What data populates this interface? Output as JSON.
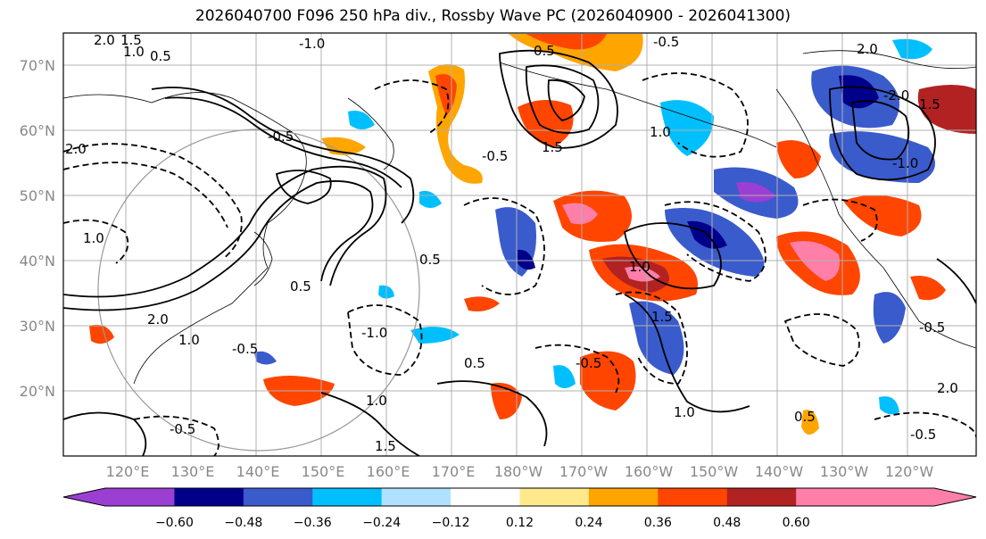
{
  "title": "2026040700 F096 250 hPa div., Rossby Wave PC (2026040900 - 2026041300)",
  "lat_labels": [
    "70°N",
    "60°N",
    "50°N",
    "40°N",
    "30°N",
    "20°N"
  ],
  "lon_labels": [
    "120°E",
    "130°E",
    "140°E",
    "150°E",
    "160°E",
    "170°E",
    "180°W",
    "170°W",
    "160°W",
    "150°W",
    "140°W",
    "130°W",
    "120°W"
  ],
  "colorbar": {
    "ticks": [
      "−0.60",
      "−0.48",
      "−0.36",
      "−0.24",
      "−0.12",
      "0.12",
      "0.24",
      "0.36",
      "0.48",
      "0.60"
    ],
    "colors": [
      "#9a3fd2",
      "#00008b",
      "#3a5bcc",
      "#00bfff",
      "#b0e2ff",
      "#ffffff",
      "#ffe98a",
      "#ffa500",
      "#ff4500",
      "#b22222",
      "#ff7fa8",
      "#ff7fa8"
    ],
    "under_color": "#9a3fd2",
    "over_color": "#ff7fa8"
  },
  "contour_labels": [
    "2.0",
    "1.5",
    "1.0",
    "0.5",
    "-1.0",
    "0.5",
    "2.0",
    "-0.5",
    "1.0",
    "1.5",
    "0.5",
    "2.0",
    "-0.5",
    "1.0",
    "-0.5",
    "1.5",
    "-1.0",
    "-0.5",
    "2.0",
    "1.0",
    "-1.0",
    "-2.0",
    "0.5",
    "1.0",
    "-0.5",
    "-0.5",
    "1.0",
    "1.5",
    "0.5",
    "1.0",
    "1.5",
    "-0.5",
    "0.5",
    "-0.5",
    "2.0"
  ],
  "colors": {
    "frame": "#000000",
    "grid": "#b0b0b0",
    "tick_text": "#888888"
  }
}
